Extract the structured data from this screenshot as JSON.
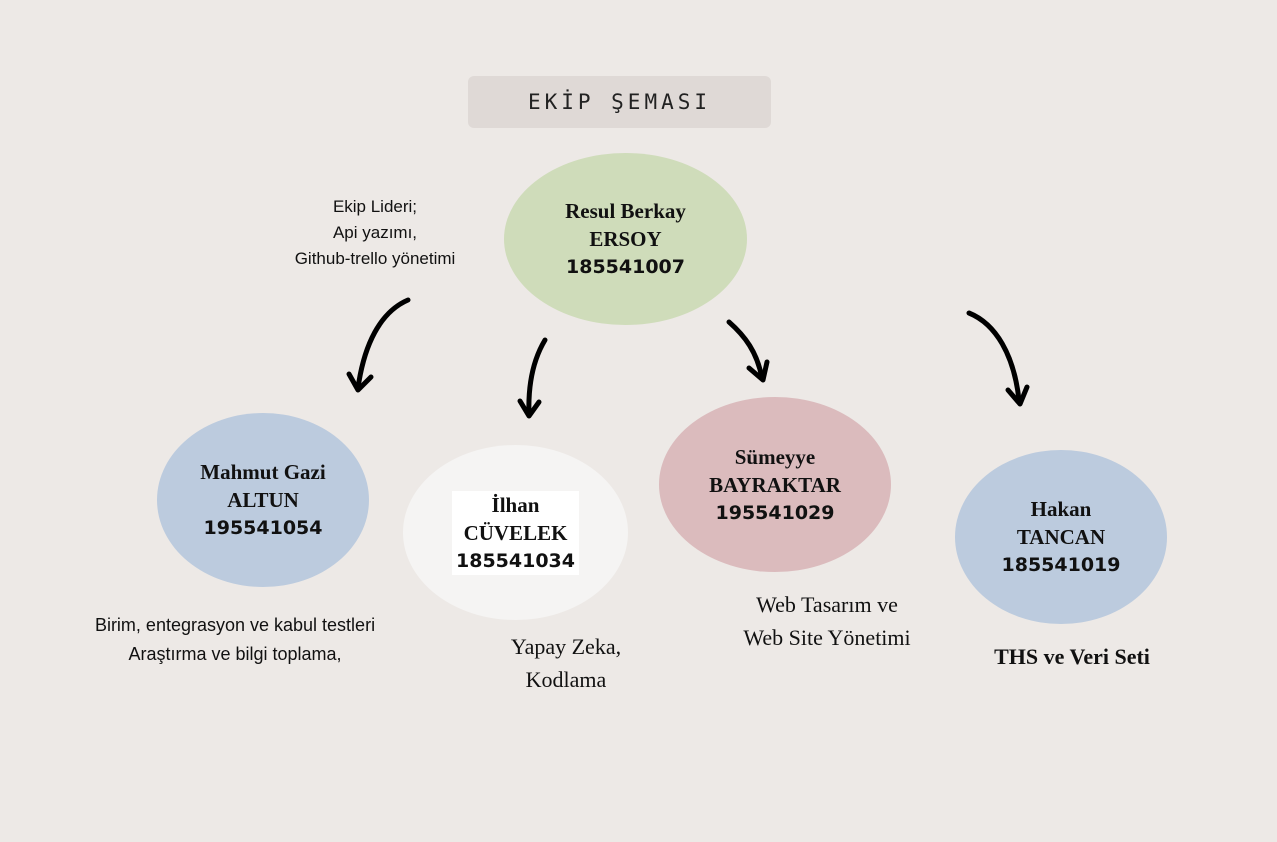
{
  "title": "EKİP ŞEMASI",
  "leader": {
    "name_line1": "Resul Berkay",
    "name_line2": "ERSOY",
    "id": "185541007",
    "role_lines": [
      "Ekip Lideri;",
      "Api yazımı,",
      "Github-trello yönetimi"
    ]
  },
  "members": [
    {
      "name_line1": "Mahmut Gazi",
      "name_line2": "ALTUN",
      "id": "195541054",
      "role_lines": [
        "Birim, entegrasyon ve kabul testleri",
        "Araştırma ve bilgi toplama,"
      ]
    },
    {
      "name_line1": "İlhan",
      "name_line2": "CÜVELEK",
      "id": "185541034",
      "role_lines": [
        "Yapay Zeka,",
        "Kodlama"
      ]
    },
    {
      "name_line1": "Sümeyye",
      "name_line2": "BAYRAKTAR",
      "id": "195541029",
      "role_lines": [
        "Web Tasarım ve",
        "Web Site Yönetimi"
      ]
    },
    {
      "name_line1": "Hakan",
      "name_line2": "TANCAN",
      "id": "185541019",
      "role_lines": [
        "THS ve Veri Seti"
      ]
    }
  ],
  "colors": {
    "background": "#ede9e6",
    "title_box": "#dfd9d6",
    "leader": "#cfdcba",
    "blue_member": "#bccbde",
    "white_member": "#f5f4f3",
    "pink_member": "#dbbbbd"
  }
}
